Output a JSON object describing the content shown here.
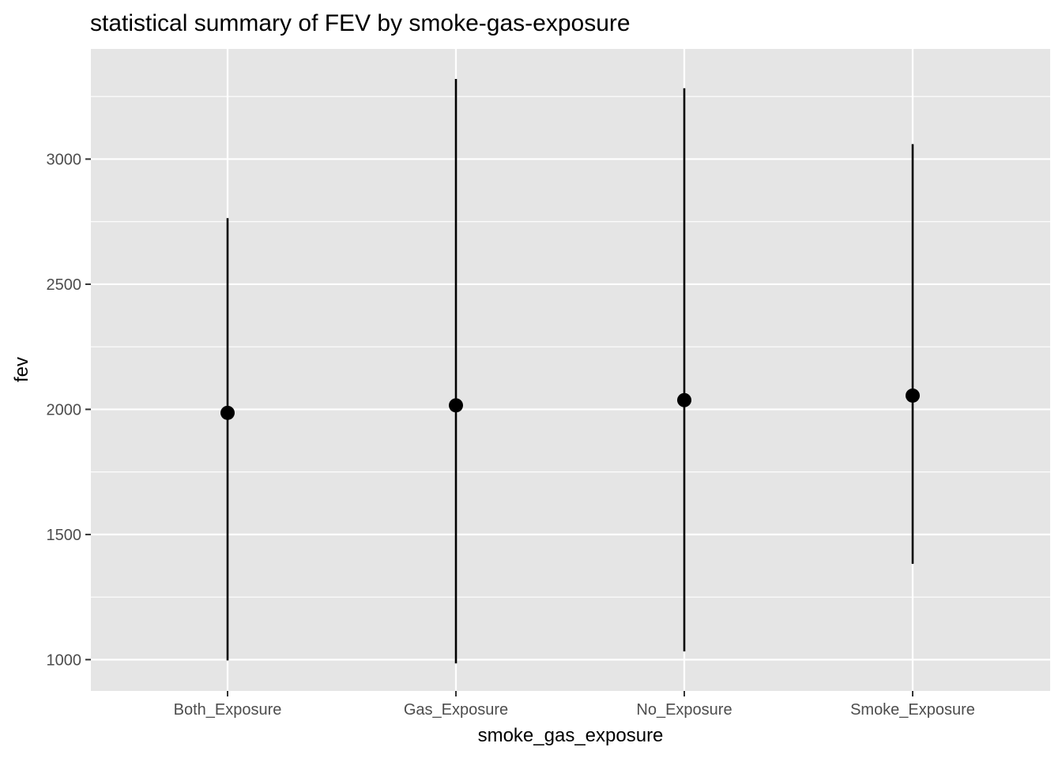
{
  "chart_data": {
    "type": "pointrange",
    "title": "statistical summary of FEV by smoke-gas-exposure",
    "xlabel": "smoke_gas_exposure",
    "ylabel": "fev",
    "categories": [
      "Both_Exposure",
      "Gas_Exposure",
      "No_Exposure",
      "Smoke_Exposure"
    ],
    "series": [
      {
        "values": [
          1986,
          2016,
          2037,
          2055
        ],
        "ymin": [
          997,
          985,
          1033,
          1383
        ],
        "ymax": [
          2764,
          3320,
          3283,
          3060
        ]
      }
    ],
    "ylim": [
      875,
      3440
    ],
    "yticks": [
      1000,
      1500,
      2000,
      2500,
      3000
    ],
    "yminor": [
      1250,
      1750,
      2250,
      2750,
      3250
    ],
    "grid": true,
    "legend": "none",
    "colors": {
      "panel": "#e5e5e5",
      "grid": "#ffffff",
      "marks": "#000000",
      "ticks": "#333333"
    }
  }
}
